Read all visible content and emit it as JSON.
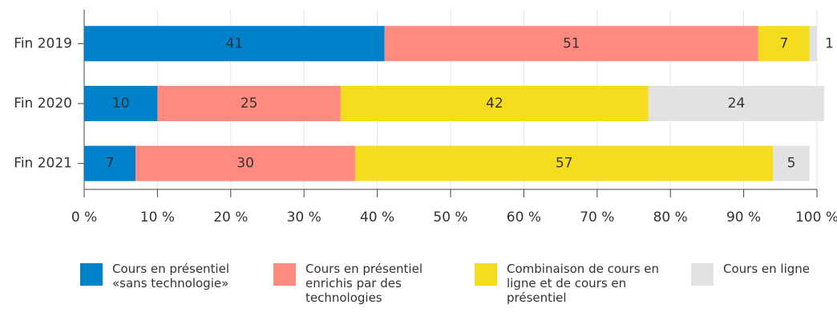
{
  "chart_data": {
    "type": "stacked-barh",
    "categories": [
      "Fin 2019",
      "Fin 2020",
      "Fin 2021"
    ],
    "series": [
      {
        "name": "Cours en présentiel «sans technologie»",
        "color": "#0082cb",
        "values": [
          41,
          10,
          7
        ]
      },
      {
        "name": "Cours en présentiel enrichis par des technologies",
        "color": "#ff8b80",
        "values": [
          51,
          25,
          30
        ]
      },
      {
        "name": "Combinaison de cours en ligne et de cours en présentiel",
        "color": "#f6dc1f",
        "values": [
          7,
          42,
          57
        ]
      },
      {
        "name": "Cours en ligne",
        "color": "#e2e2e2",
        "values": [
          1,
          24,
          5
        ]
      }
    ],
    "xlim": [
      0,
      100
    ],
    "xticks": [
      {
        "value": 0,
        "label": "0 %"
      },
      {
        "value": 10,
        "label": "10 %"
      },
      {
        "value": 20,
        "label": "20 %"
      },
      {
        "value": 30,
        "label": "30 %"
      },
      {
        "value": 40,
        "label": "40 %"
      },
      {
        "value": 50,
        "label": "50 %"
      },
      {
        "value": 60,
        "label": "60 %"
      },
      {
        "value": 70,
        "label": "70 %"
      },
      {
        "value": 80,
        "label": "80 %"
      },
      {
        "value": 90,
        "label": "90 %"
      },
      {
        "value": 100,
        "label": "100 %"
      }
    ],
    "grid": true
  }
}
